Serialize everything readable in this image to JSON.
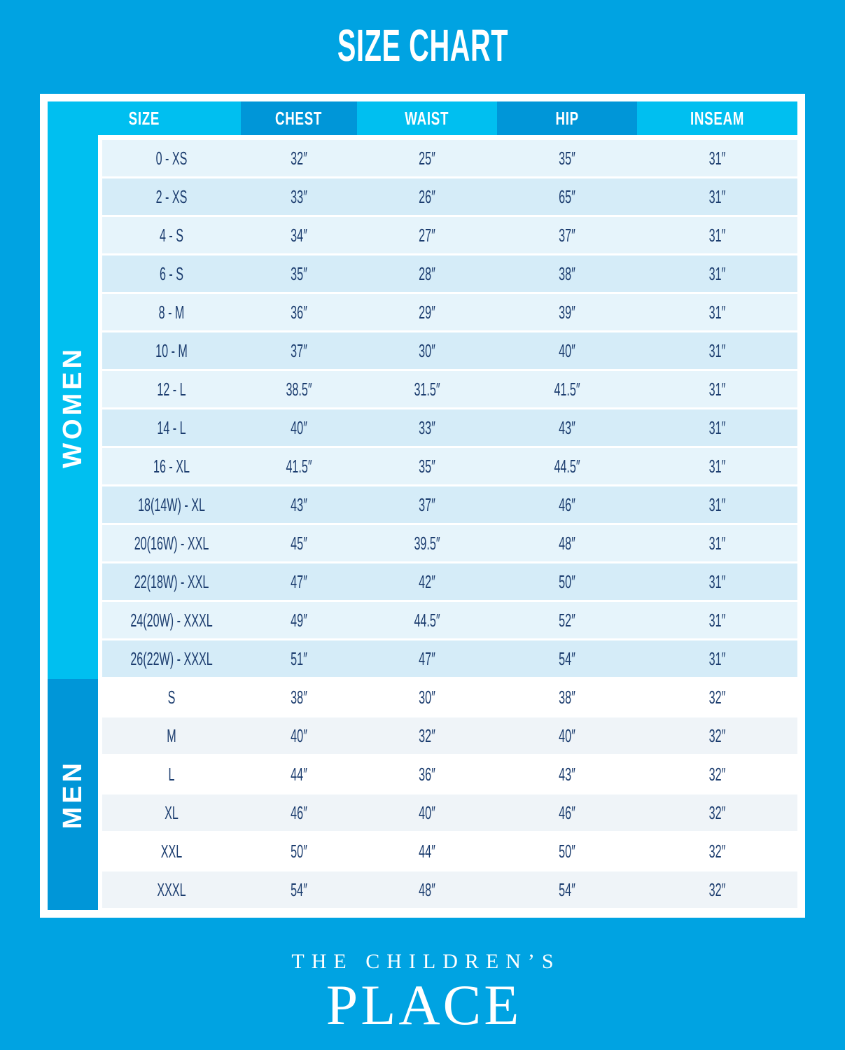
{
  "page": {
    "title": "SIZE CHART"
  },
  "chart_data": {
    "type": "table",
    "title": "SIZE CHART",
    "columns": [
      "SIZE",
      "CHEST",
      "WAIST",
      "HIP",
      "INSEAM"
    ],
    "sections": [
      {
        "group": "WOMEN",
        "rows": [
          [
            "0 - XS",
            "32″",
            "25″",
            "35″",
            "31″"
          ],
          [
            "2 - XS",
            "33″",
            "26″",
            "65″",
            "31″"
          ],
          [
            "4 - S",
            "34″",
            "27″",
            "37″",
            "31″"
          ],
          [
            "6 - S",
            "35″",
            "28″",
            "38″",
            "31″"
          ],
          [
            "8 - M",
            "36″",
            "29″",
            "39″",
            "31″"
          ],
          [
            "10 - M",
            "37″",
            "30″",
            "40″",
            "31″"
          ],
          [
            "12 - L",
            "38.5″",
            "31.5″",
            "41.5″",
            "31″"
          ],
          [
            "14 - L",
            "40″",
            "33″",
            "43″",
            "31″"
          ],
          [
            "16 - XL",
            "41.5″",
            "35″",
            "44.5″",
            "31″"
          ],
          [
            "18(14W) - XL",
            "43″",
            "37″",
            "46″",
            "31″"
          ],
          [
            "20(16W) - XXL",
            "45″",
            "39.5″",
            "48″",
            "31″"
          ],
          [
            "22(18W) - XXL",
            "47″",
            "42″",
            "50″",
            "31″"
          ],
          [
            "24(20W) - XXXL",
            "49″",
            "44.5″",
            "52″",
            "31″"
          ],
          [
            "26(22W) - XXXL",
            "51″",
            "47″",
            "54″",
            "31″"
          ]
        ]
      },
      {
        "group": "MEN",
        "rows": [
          [
            "S",
            "38″",
            "30″",
            "38″",
            "32″"
          ],
          [
            "M",
            "40″",
            "32″",
            "40″",
            "32″"
          ],
          [
            "L",
            "44″",
            "36″",
            "43″",
            "32″"
          ],
          [
            "XL",
            "46″",
            "40″",
            "46″",
            "32″"
          ],
          [
            "XXL",
            "50″",
            "44″",
            "50″",
            "32″"
          ],
          [
            "XXXL",
            "54″",
            "48″",
            "54″",
            "32″"
          ]
        ]
      }
    ]
  },
  "footer": {
    "line1": "THE CHILDREN’S",
    "line2": "PLACE"
  },
  "colors": {
    "background": "#00A3E2",
    "header_light": "#00BFF0",
    "header_dark": "#0096D8",
    "row_light": "#E6F4FB",
    "row_mid": "#D5ECF8",
    "row_white": "#FFFFFF",
    "row_gray": "#EFF4F8",
    "text_navy": "#1B3C6E",
    "text_white": "#FFFFFF"
  }
}
